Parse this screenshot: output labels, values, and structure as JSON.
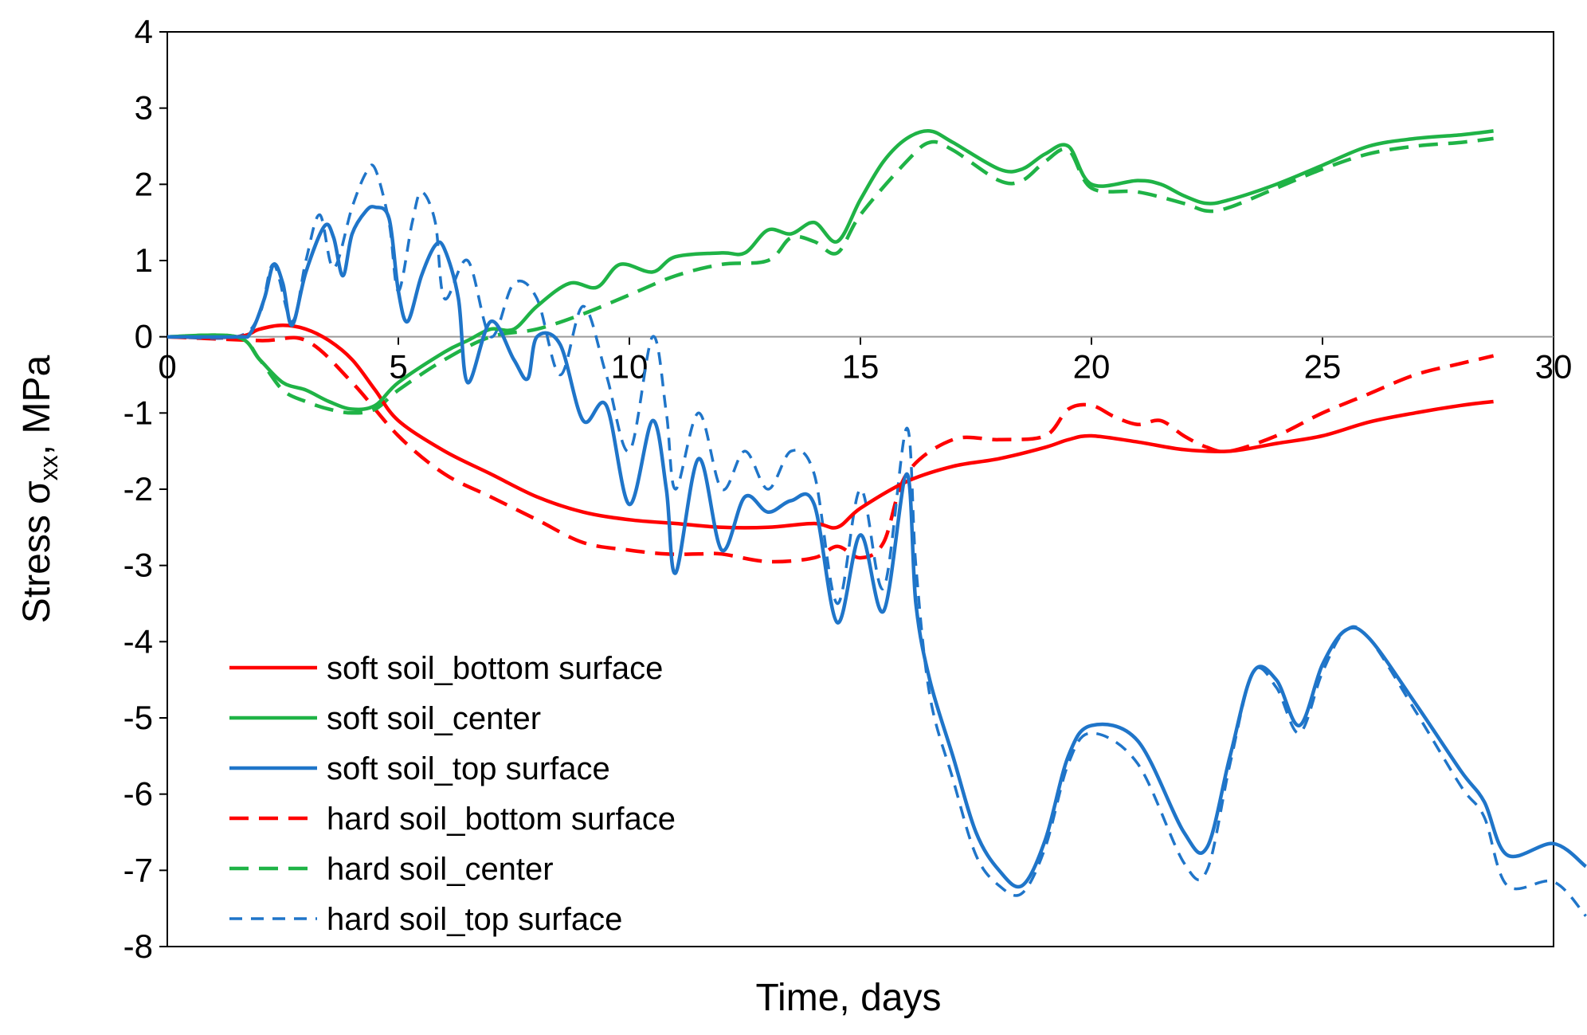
{
  "chart_data": {
    "type": "line",
    "title": "",
    "xlabel": "Time, days",
    "ylabel": "Stress σxx, MPa",
    "ylabel_main": "Stress σ",
    "ylabel_sub": "xx",
    "ylabel_tail": ", MPa",
    "xlim": [
      0,
      30
    ],
    "ylim": [
      -8,
      4
    ],
    "x_ticks": [
      0,
      5,
      10,
      15,
      20,
      25,
      30
    ],
    "y_ticks": [
      4,
      3,
      2,
      1,
      0,
      -1,
      -2,
      -3,
      -4,
      -5,
      -6,
      -7,
      -8
    ],
    "x_tick_labels": [
      "0",
      "5",
      "10",
      "15",
      "20",
      "25",
      "30"
    ],
    "y_tick_labels": [
      "4",
      "3",
      "2",
      "1",
      "0",
      "-1",
      "-2",
      "-3",
      "-4",
      "-5",
      "-6",
      "-7",
      "-8"
    ],
    "grid": false,
    "legend_position": "bottom-left",
    "series": [
      {
        "name": "soft soil_bottom surface",
        "color": "#ff0000",
        "dash": "solid",
        "points": [
          [
            0,
            0
          ],
          [
            1.5,
            0
          ],
          [
            2,
            0.1
          ],
          [
            2.5,
            0.15
          ],
          [
            3,
            0.1
          ],
          [
            3.5,
            -0.05
          ],
          [
            4,
            -0.3
          ],
          [
            4.5,
            -0.7
          ],
          [
            5,
            -1.1
          ],
          [
            6,
            -1.5
          ],
          [
            7,
            -1.8
          ],
          [
            8,
            -2.1
          ],
          [
            9,
            -2.3
          ],
          [
            10,
            -2.4
          ],
          [
            11,
            -2.45
          ],
          [
            12,
            -2.5
          ],
          [
            13,
            -2.5
          ],
          [
            14,
            -2.45
          ],
          [
            14.5,
            -2.5
          ],
          [
            15,
            -2.25
          ],
          [
            16,
            -1.9
          ],
          [
            17,
            -1.7
          ],
          [
            18,
            -1.6
          ],
          [
            19,
            -1.45
          ],
          [
            19.5,
            -1.35
          ],
          [
            20,
            -1.3
          ],
          [
            21,
            -1.38
          ],
          [
            22,
            -1.48
          ],
          [
            23,
            -1.5
          ],
          [
            24,
            -1.4
          ],
          [
            25,
            -1.3
          ],
          [
            26,
            -1.12
          ],
          [
            27,
            -1.0
          ],
          [
            28,
            -0.9
          ],
          [
            28.7,
            -0.85
          ]
        ]
      },
      {
        "name": "soft soil_center",
        "color": "#1fb346",
        "dash": "solid",
        "points": [
          [
            0,
            0
          ],
          [
            1.5,
            0
          ],
          [
            2,
            -0.3
          ],
          [
            2.5,
            -0.6
          ],
          [
            3,
            -0.7
          ],
          [
            3.5,
            -0.85
          ],
          [
            4,
            -0.95
          ],
          [
            4.5,
            -0.9
          ],
          [
            5,
            -0.6
          ],
          [
            6,
            -0.2
          ],
          [
            6.5,
            -0.05
          ],
          [
            7,
            0.1
          ],
          [
            7.5,
            0.1
          ],
          [
            8,
            0.4
          ],
          [
            8.7,
            0.7
          ],
          [
            9.3,
            0.65
          ],
          [
            9.8,
            0.95
          ],
          [
            10.5,
            0.85
          ],
          [
            11,
            1.05
          ],
          [
            12,
            1.1
          ],
          [
            12.5,
            1.1
          ],
          [
            13,
            1.4
          ],
          [
            13.5,
            1.35
          ],
          [
            14,
            1.5
          ],
          [
            14.5,
            1.25
          ],
          [
            15,
            1.8
          ],
          [
            15.5,
            2.3
          ],
          [
            16,
            2.6
          ],
          [
            16.5,
            2.7
          ],
          [
            17,
            2.55
          ],
          [
            18,
            2.2
          ],
          [
            18.5,
            2.2
          ],
          [
            19,
            2.4
          ],
          [
            19.5,
            2.5
          ],
          [
            20,
            2.0
          ],
          [
            21,
            2.05
          ],
          [
            21.5,
            2.0
          ],
          [
            22,
            1.85
          ],
          [
            22.5,
            1.75
          ],
          [
            23,
            1.8
          ],
          [
            24,
            2.0
          ],
          [
            25,
            2.25
          ],
          [
            26,
            2.5
          ],
          [
            27,
            2.6
          ],
          [
            28,
            2.65
          ],
          [
            28.7,
            2.7
          ]
        ]
      },
      {
        "name": "soft soil_top surface",
        "color": "#1f75c9",
        "dash": "solid",
        "points": [
          [
            0,
            0
          ],
          [
            1.5,
            0
          ],
          [
            1.8,
            0.05
          ],
          [
            2.1,
            0.5
          ],
          [
            2.3,
            0.95
          ],
          [
            2.5,
            0.7
          ],
          [
            2.7,
            0.15
          ],
          [
            3,
            0.85
          ],
          [
            3.4,
            1.45
          ],
          [
            3.6,
            1.3
          ],
          [
            3.8,
            0.8
          ],
          [
            4,
            1.35
          ],
          [
            4.3,
            1.65
          ],
          [
            4.5,
            1.7
          ],
          [
            4.8,
            1.55
          ],
          [
            5,
            0.6
          ],
          [
            5.2,
            0.2
          ],
          [
            5.5,
            0.8
          ],
          [
            5.8,
            1.2
          ],
          [
            6,
            1.15
          ],
          [
            6.3,
            0.5
          ],
          [
            6.5,
            -0.6
          ],
          [
            7,
            0.2
          ],
          [
            7.5,
            -0.3
          ],
          [
            7.8,
            -0.55
          ],
          [
            8,
            0
          ],
          [
            8.5,
            -0.1
          ],
          [
            9,
            -1.1
          ],
          [
            9.5,
            -0.9
          ],
          [
            10,
            -2.2
          ],
          [
            10.5,
            -1.1
          ],
          [
            10.8,
            -2.0
          ],
          [
            11,
            -3.1
          ],
          [
            11.5,
            -1.6
          ],
          [
            12,
            -2.8
          ],
          [
            12.5,
            -2.1
          ],
          [
            13,
            -2.3
          ],
          [
            13.5,
            -2.15
          ],
          [
            14,
            -2.2
          ],
          [
            14.5,
            -3.75
          ],
          [
            15,
            -2.6
          ],
          [
            15.5,
            -3.6
          ],
          [
            16,
            -1.8
          ],
          [
            16.2,
            -3.5
          ],
          [
            16.5,
            -4.5
          ],
          [
            17,
            -5.5
          ],
          [
            17.5,
            -6.5
          ],
          [
            18,
            -7.0
          ],
          [
            18.5,
            -7.2
          ],
          [
            19,
            -6.6
          ],
          [
            19.5,
            -5.5
          ],
          [
            20,
            -5.1
          ],
          [
            21,
            -5.3
          ],
          [
            22,
            -6.5
          ],
          [
            22.5,
            -6.7
          ],
          [
            23,
            -5.5
          ],
          [
            23.5,
            -4.4
          ],
          [
            24,
            -4.5
          ],
          [
            24.5,
            -5.1
          ],
          [
            25,
            -4.3
          ],
          [
            25.5,
            -3.85
          ],
          [
            26,
            -3.95
          ],
          [
            27,
            -4.8
          ],
          [
            28,
            -5.7
          ],
          [
            28.5,
            -6.1
          ],
          [
            29,
            -6.8
          ],
          [
            30,
            -6.65
          ],
          [
            30.7,
            -6.95
          ]
        ]
      },
      {
        "name": "hard soil_bottom surface",
        "color": "#ff0000",
        "dash": "dashed",
        "points": [
          [
            0,
            0
          ],
          [
            2,
            -0.05
          ],
          [
            3,
            -0.05
          ],
          [
            4,
            -0.6
          ],
          [
            5,
            -1.3
          ],
          [
            6,
            -1.8
          ],
          [
            7,
            -2.1
          ],
          [
            8,
            -2.4
          ],
          [
            9,
            -2.7
          ],
          [
            10,
            -2.8
          ],
          [
            10.8,
            -2.85
          ],
          [
            11.5,
            -2.85
          ],
          [
            12,
            -2.85
          ],
          [
            13,
            -2.95
          ],
          [
            14,
            -2.9
          ],
          [
            14.5,
            -2.75
          ],
          [
            15,
            -2.9
          ],
          [
            15.5,
            -2.7
          ],
          [
            16,
            -1.8
          ],
          [
            17,
            -1.35
          ],
          [
            18,
            -1.35
          ],
          [
            19,
            -1.3
          ],
          [
            19.5,
            -0.95
          ],
          [
            20,
            -0.9
          ],
          [
            20.5,
            -1.05
          ],
          [
            21,
            -1.15
          ],
          [
            21.5,
            -1.1
          ],
          [
            22,
            -1.3
          ],
          [
            22.5,
            -1.45
          ],
          [
            23,
            -1.5
          ],
          [
            24,
            -1.3
          ],
          [
            25,
            -1.0
          ],
          [
            26,
            -0.75
          ],
          [
            27,
            -0.5
          ],
          [
            28,
            -0.35
          ],
          [
            28.7,
            -0.25
          ]
        ]
      },
      {
        "name": "hard soil_center",
        "color": "#1fb346",
        "dash": "dashed",
        "points": [
          [
            0,
            0
          ],
          [
            1.5,
            0
          ],
          [
            2,
            -0.3
          ],
          [
            2.5,
            -0.7
          ],
          [
            3,
            -0.85
          ],
          [
            3.5,
            -0.95
          ],
          [
            4,
            -1.0
          ],
          [
            4.5,
            -0.95
          ],
          [
            5,
            -0.7
          ],
          [
            6,
            -0.3
          ],
          [
            7,
            0
          ],
          [
            8,
            0.1
          ],
          [
            9,
            0.3
          ],
          [
            10,
            0.55
          ],
          [
            11,
            0.8
          ],
          [
            12,
            0.95
          ],
          [
            13,
            1.0
          ],
          [
            13.5,
            1.3
          ],
          [
            14,
            1.25
          ],
          [
            14.5,
            1.1
          ],
          [
            15,
            1.6
          ],
          [
            16,
            2.3
          ],
          [
            16.5,
            2.55
          ],
          [
            17,
            2.45
          ],
          [
            18,
            2.05
          ],
          [
            18.5,
            2.05
          ],
          [
            19,
            2.3
          ],
          [
            19.5,
            2.45
          ],
          [
            20,
            1.95
          ],
          [
            21,
            1.9
          ],
          [
            22,
            1.75
          ],
          [
            22.5,
            1.65
          ],
          [
            23,
            1.7
          ],
          [
            24,
            1.95
          ],
          [
            25,
            2.2
          ],
          [
            26,
            2.4
          ],
          [
            27,
            2.5
          ],
          [
            28,
            2.55
          ],
          [
            28.7,
            2.6
          ]
        ]
      },
      {
        "name": "hard soil_top surface",
        "color": "#1f75c9",
        "dash": "dashed",
        "points": [
          [
            0,
            0
          ],
          [
            1.5,
            0
          ],
          [
            2,
            0.3
          ],
          [
            2.3,
            0.95
          ],
          [
            2.7,
            0.2
          ],
          [
            3,
            1.0
          ],
          [
            3.3,
            1.6
          ],
          [
            3.6,
            0.9
          ],
          [
            4,
            1.7
          ],
          [
            4.3,
            2.15
          ],
          [
            4.5,
            2.2
          ],
          [
            4.8,
            1.5
          ],
          [
            5,
            0.6
          ],
          [
            5.3,
            1.5
          ],
          [
            5.5,
            1.9
          ],
          [
            5.8,
            1.5
          ],
          [
            6,
            0.5
          ],
          [
            6.5,
            1.0
          ],
          [
            7,
            0
          ],
          [
            7.5,
            0.7
          ],
          [
            8,
            0.5
          ],
          [
            8.5,
            -0.5
          ],
          [
            9,
            0.4
          ],
          [
            9.5,
            -0.5
          ],
          [
            10,
            -1.5
          ],
          [
            10.5,
            0
          ],
          [
            10.8,
            -1.0
          ],
          [
            11,
            -2.0
          ],
          [
            11.5,
            -1.0
          ],
          [
            12,
            -2.0
          ],
          [
            12.5,
            -1.5
          ],
          [
            13,
            -2.0
          ],
          [
            13.5,
            -1.5
          ],
          [
            14,
            -1.8
          ],
          [
            14.5,
            -3.5
          ],
          [
            15,
            -2.0
          ],
          [
            15.5,
            -3.3
          ],
          [
            16,
            -1.2
          ],
          [
            16.2,
            -3.0
          ],
          [
            16.5,
            -4.7
          ],
          [
            17,
            -5.8
          ],
          [
            17.5,
            -6.8
          ],
          [
            18,
            -7.2
          ],
          [
            18.5,
            -7.3
          ],
          [
            19,
            -6.7
          ],
          [
            19.5,
            -5.6
          ],
          [
            20,
            -5.2
          ],
          [
            21,
            -5.6
          ],
          [
            22,
            -6.9
          ],
          [
            22.5,
            -7.0
          ],
          [
            23,
            -5.6
          ],
          [
            23.5,
            -4.4
          ],
          [
            24,
            -4.6
          ],
          [
            24.5,
            -5.2
          ],
          [
            25,
            -4.4
          ],
          [
            25.5,
            -3.85
          ],
          [
            26,
            -3.95
          ],
          [
            27,
            -4.9
          ],
          [
            28,
            -5.9
          ],
          [
            28.5,
            -6.3
          ],
          [
            29,
            -7.2
          ],
          [
            30,
            -7.15
          ],
          [
            30.7,
            -7.6
          ]
        ]
      }
    ]
  }
}
